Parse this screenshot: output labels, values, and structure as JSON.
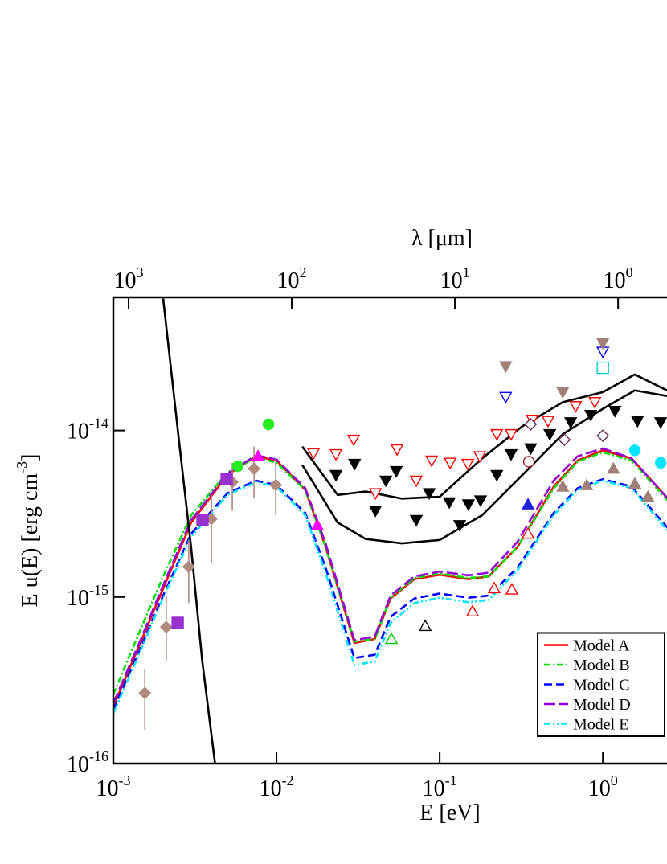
{
  "chart_data": {
    "type": "line",
    "xlabel": "E [eV]",
    "x2label": "λ [μm]",
    "ylabel": [
      "E u(E) [erg cm",
      "-3",
      "]"
    ],
    "xscale": "log",
    "yscale": "log",
    "xlim": [
      0.001,
      2.5
    ],
    "x2lim": [
      1240,
      0.496
    ],
    "ylim": [
      1e-16,
      6.3e-14
    ],
    "xticks": [
      {
        "value": 0.001,
        "label": "10",
        "exponent": "-3"
      },
      {
        "value": 0.01,
        "label": "10",
        "exponent": "-2"
      },
      {
        "value": 0.1,
        "label": "10",
        "exponent": "-1"
      },
      {
        "value": 1,
        "label": "10",
        "exponent": "0"
      }
    ],
    "x2ticks": [
      {
        "value": 1000,
        "label": "10",
        "exponent": "3"
      },
      {
        "value": 100,
        "label": "10",
        "exponent": "2"
      },
      {
        "value": 10,
        "label": "10",
        "exponent": "1"
      },
      {
        "value": 1,
        "label": "10",
        "exponent": "0"
      }
    ],
    "yticks": [
      {
        "value": 1e-16,
        "label": "10",
        "exponent": "-16"
      },
      {
        "value": 1e-15,
        "label": "10",
        "exponent": "-15"
      },
      {
        "value": 1e-14,
        "label": "10",
        "exponent": "-14"
      }
    ],
    "legend": "lower right",
    "series": [
      {
        "name": "Model A",
        "kind": "line",
        "color": "#ff0000",
        "dash": "none",
        "x": [
          0.001,
          0.0015,
          0.002,
          0.003,
          0.005,
          0.0075,
          0.01,
          0.015,
          0.02,
          0.03,
          0.04,
          0.05,
          0.07,
          0.1,
          0.15,
          0.2,
          0.3,
          0.5,
          0.7,
          1.0,
          1.5,
          2.5
        ],
        "values": [
          2.2e-16,
          5.6e-16,
          1.1e-15,
          2.8e-15,
          5.4e-15,
          7e-15,
          6.6e-15,
          4.4e-15,
          2e-15,
          5.3e-16,
          5.6e-16,
          9.8e-16,
          1.28e-15,
          1.36e-15,
          1.28e-15,
          1.33e-15,
          2e-15,
          4.6e-15,
          6.6e-15,
          7.6e-15,
          6.8e-15,
          3.9e-15
        ]
      },
      {
        "name": "Model B",
        "kind": "line",
        "color": "#00dd00",
        "dash": "8,3,2,3",
        "x": [
          0.001,
          0.0015,
          0.002,
          0.003,
          0.005,
          0.0075,
          0.01,
          0.015,
          0.02,
          0.03,
          0.04,
          0.05,
          0.07,
          0.1,
          0.15,
          0.2,
          0.3,
          0.5,
          0.7,
          1.0,
          1.5,
          2.5
        ],
        "values": [
          2.6e-16,
          6.7e-16,
          1.3e-15,
          3.1e-15,
          5.6e-15,
          6.9e-15,
          6.4e-15,
          4.4e-15,
          2e-15,
          5.4e-16,
          5.6e-16,
          9.9e-16,
          1.3e-15,
          1.38e-15,
          1.3e-15,
          1.33e-15,
          2e-15,
          4.5e-15,
          6.5e-15,
          7.4e-15,
          6.6e-15,
          3.8e-15
        ]
      },
      {
        "name": "Model C",
        "kind": "line",
        "color": "#0000ff",
        "dash": "10,5",
        "x": [
          0.001,
          0.0015,
          0.002,
          0.003,
          0.005,
          0.0075,
          0.01,
          0.015,
          0.02,
          0.03,
          0.04,
          0.05,
          0.07,
          0.1,
          0.15,
          0.2,
          0.3,
          0.5,
          0.7,
          1.0,
          1.5,
          2.5
        ],
        "values": [
          2.1e-16,
          5.2e-16,
          1e-15,
          2.4e-15,
          4.2e-15,
          5e-15,
          4.7e-15,
          3.2e-15,
          1.5e-15,
          4.3e-16,
          4.5e-16,
          7.6e-16,
          9.8e-16,
          1.05e-15,
          9.9e-16,
          1.02e-15,
          1.5e-15,
          3.2e-15,
          4.5e-15,
          5.1e-15,
          4.6e-15,
          2.6e-15
        ]
      },
      {
        "name": "Model D",
        "kind": "line",
        "color": "#9400d3",
        "dash": "14,5",
        "x": [
          0.001,
          0.0015,
          0.002,
          0.003,
          0.005,
          0.0075,
          0.01,
          0.015,
          0.02,
          0.03,
          0.04,
          0.05,
          0.07,
          0.1,
          0.15,
          0.2,
          0.3,
          0.5,
          0.7,
          1.0,
          1.5,
          2.5
        ],
        "values": [
          2.3e-16,
          5.8e-16,
          1.15e-15,
          2.9e-15,
          5.5e-15,
          7.1e-15,
          6.7e-15,
          4.5e-15,
          2.1e-15,
          5.5e-16,
          5.8e-16,
          1.02e-15,
          1.33e-15,
          1.42e-15,
          1.35e-15,
          1.4e-15,
          2.15e-15,
          5e-15,
          7e-15,
          7.8e-15,
          6.8e-15,
          3.9e-15
        ]
      },
      {
        "name": "Model E",
        "kind": "line",
        "color": "#00e5ff",
        "dash": "8,3,2,3,2,3",
        "x": [
          0.001,
          0.0015,
          0.002,
          0.003,
          0.005,
          0.0075,
          0.01,
          0.015,
          0.02,
          0.03,
          0.04,
          0.05,
          0.07,
          0.1,
          0.15,
          0.2,
          0.3,
          0.5,
          0.7,
          1.0,
          1.5,
          2.5
        ],
        "values": [
          2e-16,
          5e-16,
          9.7e-16,
          2.3e-15,
          4.1e-15,
          4.9e-15,
          4.6e-15,
          3.1e-15,
          1.4e-15,
          3.9e-16,
          4.1e-16,
          7e-16,
          9.2e-16,
          9.9e-16,
          9.3e-16,
          9.6e-16,
          1.45e-15,
          3.1e-15,
          4.4e-15,
          5e-15,
          4.5e-15,
          2.5e-15
        ]
      },
      {
        "kind": "line",
        "color": "#000000",
        "dash": "none",
        "x": [
          0.00202,
          0.0025,
          0.003,
          0.0035,
          0.0042
        ],
        "values": [
          6.2e-14,
          9.5e-15,
          1.97e-15,
          4.2e-16,
          1e-16
        ]
      },
      {
        "kind": "line",
        "color": "#000000",
        "dash": "none",
        "x": [
          0.0144,
          0.0237,
          0.0352,
          0.0587,
          0.1,
          0.182,
          0.321,
          0.568,
          1.0,
          1.57,
          2.48
        ],
        "values": [
          8e-15,
          4.1e-15,
          4.3e-15,
          3.9e-15,
          4e-15,
          6.8e-15,
          1.06e-14,
          1.48e-14,
          1.7e-14,
          2.17e-14,
          1.74e-14
        ]
      },
      {
        "kind": "line",
        "color": "#000000",
        "dash": "none",
        "x": [
          0.0144,
          0.0237,
          0.0352,
          0.0587,
          0.1,
          0.182,
          0.321,
          0.568,
          1.0,
          1.57,
          2.48
        ],
        "values": [
          6.2e-15,
          2.8e-15,
          2.23e-15,
          2.1e-15,
          2.2e-15,
          3.1e-15,
          5.4e-15,
          9.5e-15,
          1.35e-14,
          1.74e-14,
          1.61e-14
        ]
      },
      {
        "kind": "scatter",
        "marker": "diamond",
        "filled": true,
        "color": "#b0897f",
        "x": [
          0.00156,
          0.00211,
          0.0029,
          0.00399,
          0.00536,
          0.00728,
          0.00989
        ],
        "values": [
          2.65e-16,
          6.6e-16,
          1.52e-15,
          2.95e-15,
          4.9e-15,
          5.9e-15,
          4.7e-15
        ],
        "y_low": [
          1.6e-16,
          4.1e-16,
          9.2e-16,
          1.6e-15,
          3.3e-15,
          3.9e-15,
          3.1e-15
        ],
        "y_high": [
          3.7e-16,
          1.02e-15,
          2.2e-15,
          4.1e-15,
          6.4e-15,
          8e-15,
          6.8e-15
        ]
      },
      {
        "kind": "scatter",
        "marker": "triangle-down",
        "filled": true,
        "color": "#000000",
        "x": [
          0.02314,
          0.0301,
          0.0404,
          0.0468,
          0.0542,
          0.0719,
          0.0863,
          0.1146,
          0.1327,
          0.15,
          0.178,
          0.224,
          0.274,
          0.361,
          0.473,
          0.635,
          0.843,
          1.186,
          1.63,
          2.26
        ],
        "values": [
          5.4e-15,
          6.3e-15,
          3.3e-15,
          5e-15,
          5.7e-15,
          2.9e-15,
          4.2e-15,
          3.7e-15,
          2.7e-15,
          3.6e-15,
          3.8e-15,
          5.4e-15,
          7.2e-15,
          7.8e-15,
          9.5e-15,
          1.12e-14,
          1.24e-14,
          1.31e-14,
          1.14e-14,
          1.12e-14
        ]
      },
      {
        "kind": "scatter",
        "marker": "triangle-down",
        "filled": false,
        "color": "#ff0000",
        "x": [
          0.01685,
          0.02314,
          0.0297,
          0.0404,
          0.0548,
          0.0719,
          0.0893,
          0.1159,
          0.1486,
          0.176,
          0.224,
          0.274,
          0.369,
          0.462,
          0.681,
          0.893
        ],
        "values": [
          7.3e-15,
          7.2e-15,
          8.8e-15,
          4.2e-15,
          7.7e-15,
          5e-15,
          6.6e-15,
          6.4e-15,
          6.3e-15,
          7e-15,
          9.5e-15,
          9.5e-15,
          1.16e-14,
          1.14e-14,
          1.4e-14,
          1.48e-14
        ]
      },
      {
        "kind": "scatter",
        "marker": "triangle-up",
        "filled": false,
        "color": "#ff0000",
        "x": [
          0.159,
          0.216,
          0.277,
          0.348
        ],
        "values": [
          8.2e-16,
          1.13e-15,
          1.11e-15,
          2.4e-15
        ]
      },
      {
        "kind": "scatter",
        "marker": "triangle-up",
        "filled": false,
        "color": "#00cc00",
        "x": [
          0.0506
        ],
        "values": [
          5.6e-16
        ]
      },
      {
        "kind": "scatter",
        "marker": "triangle-up",
        "filled": false,
        "color": "#000000",
        "x": [
          0.0815
        ],
        "values": [
          6.7e-16
        ]
      },
      {
        "kind": "scatter",
        "marker": "circle",
        "filled": true,
        "color": "#22ee22",
        "x": [
          0.0058,
          0.00893
        ],
        "values": [
          6.1e-15,
          1.09e-14
        ]
      },
      {
        "kind": "scatter",
        "marker": "triangle-up",
        "filled": true,
        "color": "#ff00ff",
        "x": [
          0.0077,
          0.0178
        ],
        "values": [
          7e-15,
          2.7e-15
        ]
      },
      {
        "kind": "scatter",
        "marker": "square",
        "filled": true,
        "color": "#9932cc",
        "x": [
          0.00248,
          0.00352,
          0.00495
        ],
        "values": [
          7e-16,
          2.9e-15,
          5.1e-15
        ]
      },
      {
        "kind": "scatter",
        "marker": "circle",
        "filled": true,
        "color": "#00e5ff",
        "x": [
          1.57,
          2.26
        ],
        "values": [
          7.6e-15,
          6.4e-15
        ]
      },
      {
        "kind": "scatter",
        "marker": "square",
        "filled": false,
        "color": "#00cccc",
        "x": [
          1.0
        ],
        "values": [
          2.38e-14
        ]
      },
      {
        "kind": "scatter",
        "marker": "triangle-down",
        "filled": false,
        "color": "#0000ff",
        "x": [
          0.254,
          1.0
        ],
        "values": [
          1.59e-14,
          2.97e-14
        ]
      },
      {
        "kind": "scatter",
        "marker": "triangle-down",
        "filled": true,
        "color": "#a08078",
        "x": [
          0.254,
          0.568,
          1.0
        ],
        "values": [
          2.43e-14,
          1.7e-14,
          3.35e-14
        ]
      },
      {
        "kind": "scatter",
        "marker": "triangle-up",
        "filled": true,
        "color": "#a08078",
        "x": [
          0.568,
          0.796,
          1.16,
          1.57,
          1.89
        ],
        "values": [
          4.6e-15,
          4.7e-15,
          5.9e-15,
          4.8e-15,
          4e-15
        ]
      },
      {
        "kind": "scatter",
        "marker": "diamond",
        "filled": false,
        "color": "#6b2d5b",
        "x": [
          0.361,
          0.581,
          1.0
        ],
        "values": [
          1.09e-14,
          8.8e-15,
          9.3e-15
        ]
      },
      {
        "kind": "scatter",
        "marker": "circle",
        "filled": false,
        "color": "#a02020",
        "x": [
          0.352
        ],
        "values": [
          6.5e-15
        ]
      },
      {
        "kind": "scatter",
        "marker": "triangle-up",
        "filled": true,
        "color": "#2222dd",
        "x": [
          0.348
        ],
        "values": [
          3.6e-15
        ]
      }
    ]
  }
}
